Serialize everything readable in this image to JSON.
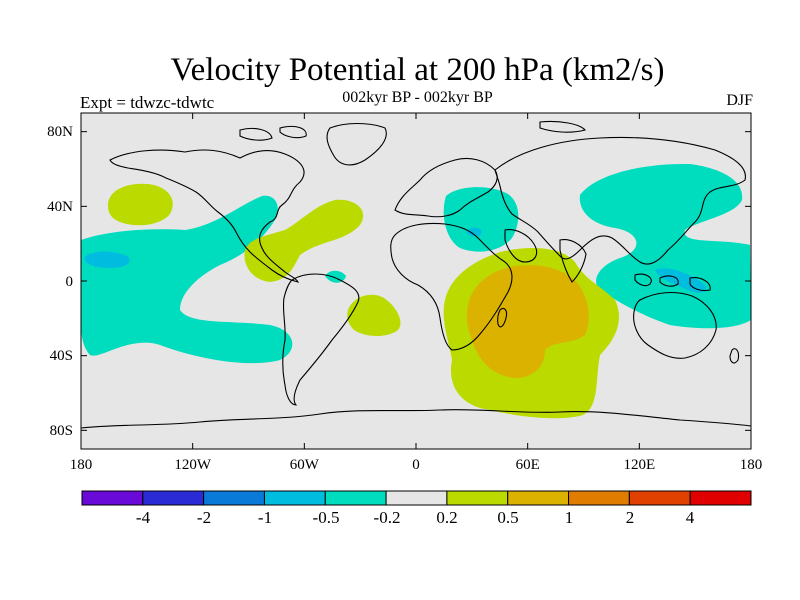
{
  "header": {
    "title": "Velocity Potential at 200 hPa (km2/s)",
    "subtitle": "002kyr BP - 002kyr BP",
    "experiment": "Expt = tdwzc-tdwtc",
    "season": "DJF"
  },
  "map": {
    "projection": "cylindrical equidistant",
    "background_color": "#e6e6e6",
    "x_ticks": [
      "180",
      "120W",
      "60W",
      "0",
      "60E",
      "120E",
      "180"
    ],
    "y_ticks": [
      "80N",
      "40N",
      "0",
      "40S",
      "80S"
    ],
    "lon_range": [
      -180,
      180
    ],
    "lat_range": [
      -90,
      90
    ]
  },
  "colorbar": {
    "colors": [
      "#6a0ad8",
      "#2b2bd6",
      "#0a7ad8",
      "#00bde0",
      "#00dcbe",
      "#e6e6e6",
      "#bbdb00",
      "#dbb200",
      "#e07c00",
      "#e04000",
      "#e00000"
    ],
    "labels": [
      "-4",
      "-2",
      "-1",
      "-0.5",
      "-0.2",
      "0.2",
      "0.5",
      "1",
      "2",
      "4"
    ]
  }
}
